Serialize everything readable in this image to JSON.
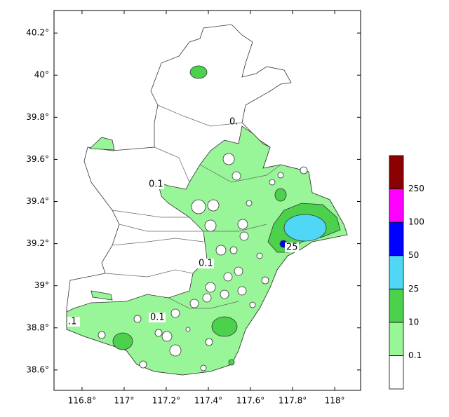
{
  "map": {
    "xlim": [
      116.667,
      118.123
    ],
    "ylim": [
      38.503,
      40.307
    ],
    "xticks": [
      {
        "value": 116.8,
        "label": "116.8°"
      },
      {
        "value": 117,
        "label": "117°"
      },
      {
        "value": 117.2,
        "label": "117.2°"
      },
      {
        "value": 117.4,
        "label": "117.4°"
      },
      {
        "value": 117.6,
        "label": "117.6°"
      },
      {
        "value": 117.8,
        "label": "117.8°"
      },
      {
        "value": 118,
        "label": "118°"
      }
    ],
    "yticks": [
      {
        "value": 38.6,
        "label": "38.6°"
      },
      {
        "value": 38.8,
        "label": "38.8°"
      },
      {
        "value": 39,
        "label": "39°"
      },
      {
        "value": 39.2,
        "label": "39.2°"
      },
      {
        "value": 39.4,
        "label": "39.4°"
      },
      {
        "value": 39.6,
        "label": "39.6°"
      },
      {
        "value": 39.8,
        "label": "39.8°"
      },
      {
        "value": 40,
        "label": "40°"
      },
      {
        "value": 40.2,
        "label": "40.2°"
      }
    ],
    "contour_labels": [
      "0.",
      "0.1",
      "0.1",
      "0.1",
      ".1",
      "25"
    ],
    "colorbar": {
      "levels": [
        0.1,
        10,
        25,
        50,
        100,
        250
      ],
      "colors": [
        "#ffffff",
        "#98f598",
        "#4cd14c",
        "#4fd7f5",
        "#0000ff",
        "#ff00ff",
        "#8b0000"
      ]
    }
  }
}
